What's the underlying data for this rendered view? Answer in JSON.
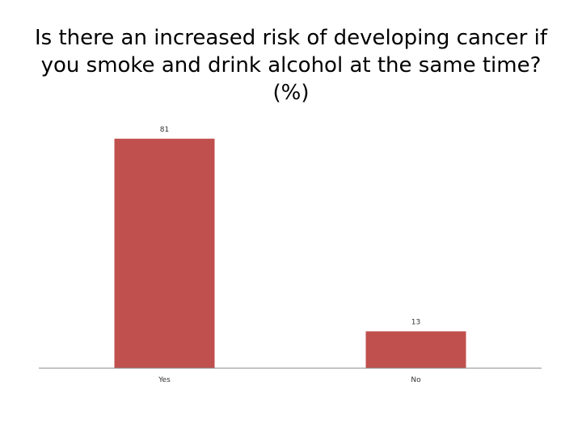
{
  "chart_data": {
    "type": "bar",
    "title": "Is there an increased risk of developing cancer if you smoke and drink alcohol at the same time? (%)",
    "categories": [
      "Yes",
      "No"
    ],
    "values": [
      81,
      13
    ],
    "data_labels": [
      "81",
      "13"
    ],
    "xlabel": "",
    "ylabel": "",
    "ylim": [
      0,
      83.5
    ],
    "grid": false,
    "legend": "none",
    "colors": {
      "bar": "#C0504D",
      "axis": "#888888"
    }
  }
}
